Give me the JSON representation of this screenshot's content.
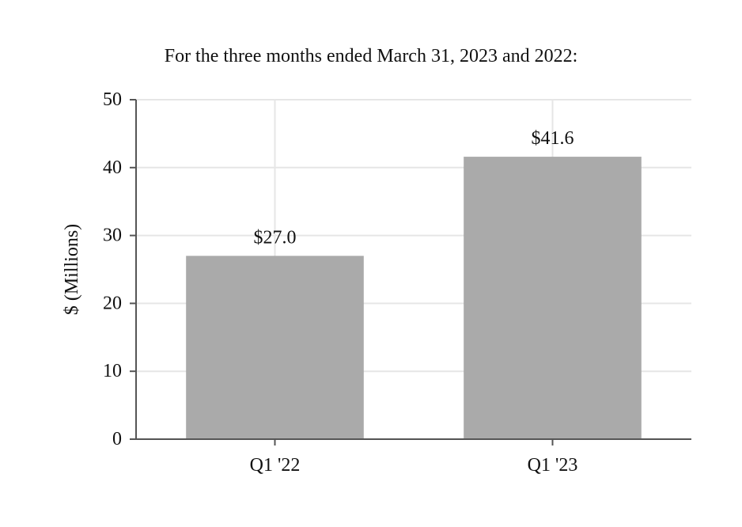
{
  "chart_data": {
    "type": "bar",
    "title": "For the three months ended March 31, 2023 and 2022:",
    "xlabel": "",
    "ylabel": "$ (Millions)",
    "categories": [
      "Q1 '22",
      "Q1 '23"
    ],
    "values": [
      27.0,
      41.6
    ],
    "data_labels": [
      "$27.0",
      "$41.6"
    ],
    "ylim": [
      0,
      50
    ],
    "yticks": [
      0,
      10,
      20,
      30,
      40,
      50
    ],
    "ytick_labels": [
      "0",
      "10",
      "20",
      "30",
      "40",
      "50"
    ],
    "grid": true,
    "bar_color": "#aaaaaa",
    "grid_color": "#e6e6e6",
    "axis_color": "#555555"
  }
}
